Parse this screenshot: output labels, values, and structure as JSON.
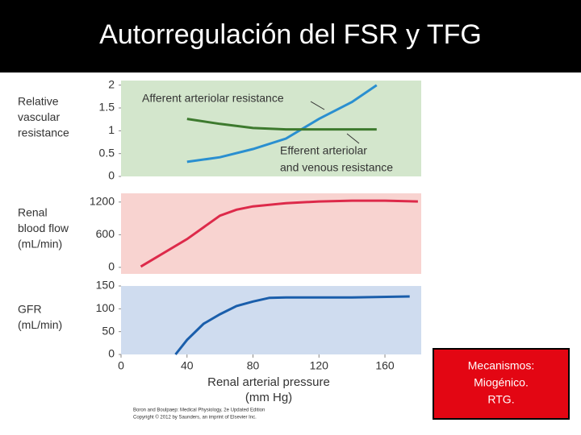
{
  "slide": {
    "title": "Autorregulación del FSR y TFG",
    "note": [
      "Mecanismos:",
      "Miogénico.",
      "RTG."
    ],
    "copyright": [
      "Boron and Boulpaep: Medical Physiology, 2e Updated Edition",
      "Copyright © 2012 by Saunders, an imprint of Elsevier Inc."
    ]
  },
  "chart_data": [
    {
      "type": "line",
      "ylabel": [
        "Relative",
        "vascular",
        "resistance"
      ],
      "background": "#d3e6cc",
      "xlim": [
        0,
        182
      ],
      "ylim": [
        0,
        2.1
      ],
      "yticks": [
        0,
        0.5,
        1,
        1.5,
        2
      ],
      "x": [
        40,
        60,
        80,
        100,
        120,
        140,
        155
      ],
      "series": [
        {
          "name": [
            "Afferent arteriolar resistance"
          ],
          "color": "#2a8fd0",
          "values": [
            0.32,
            0.42,
            0.6,
            0.83,
            1.26,
            1.63,
            2.0
          ]
        },
        {
          "name": [
            "Efferent arteriolar",
            "and venous resistance"
          ],
          "color": "#3d7a2e",
          "values": [
            1.26,
            1.15,
            1.06,
            1.03,
            1.03,
            1.03,
            1.03
          ]
        }
      ]
    },
    {
      "type": "line",
      "ylabel": [
        "Renal",
        "blood flow",
        "(mL/min)"
      ],
      "background": "#f8d3d0",
      "xlim": [
        0,
        182
      ],
      "ylim": [
        -120,
        1360
      ],
      "yticks": [
        0,
        600,
        1200
      ],
      "x": [
        12,
        40,
        60,
        70,
        80,
        100,
        120,
        140,
        160,
        180
      ],
      "series": [
        {
          "color": "#dd2a4a",
          "values": [
            15,
            520,
            950,
            1060,
            1120,
            1180,
            1210,
            1225,
            1225,
            1210
          ]
        }
      ]
    },
    {
      "type": "line",
      "ylabel": [
        "GFR",
        "(mL/min)"
      ],
      "background": "#cfdcef",
      "xlim": [
        0,
        182
      ],
      "ylim": [
        0,
        150
      ],
      "yticks": [
        0,
        50,
        100,
        150
      ],
      "xticks": [
        0,
        40,
        80,
        120,
        160
      ],
      "xlabel": [
        "Renal arterial pressure",
        "(mm Hg)"
      ],
      "x": [
        33,
        40,
        50,
        60,
        70,
        80,
        90,
        100,
        120,
        140,
        175
      ],
      "series": [
        {
          "color": "#1a5eab",
          "values": [
            0,
            32,
            67,
            88,
            106,
            116,
            124,
            125,
            125,
            125,
            127
          ]
        }
      ]
    }
  ]
}
